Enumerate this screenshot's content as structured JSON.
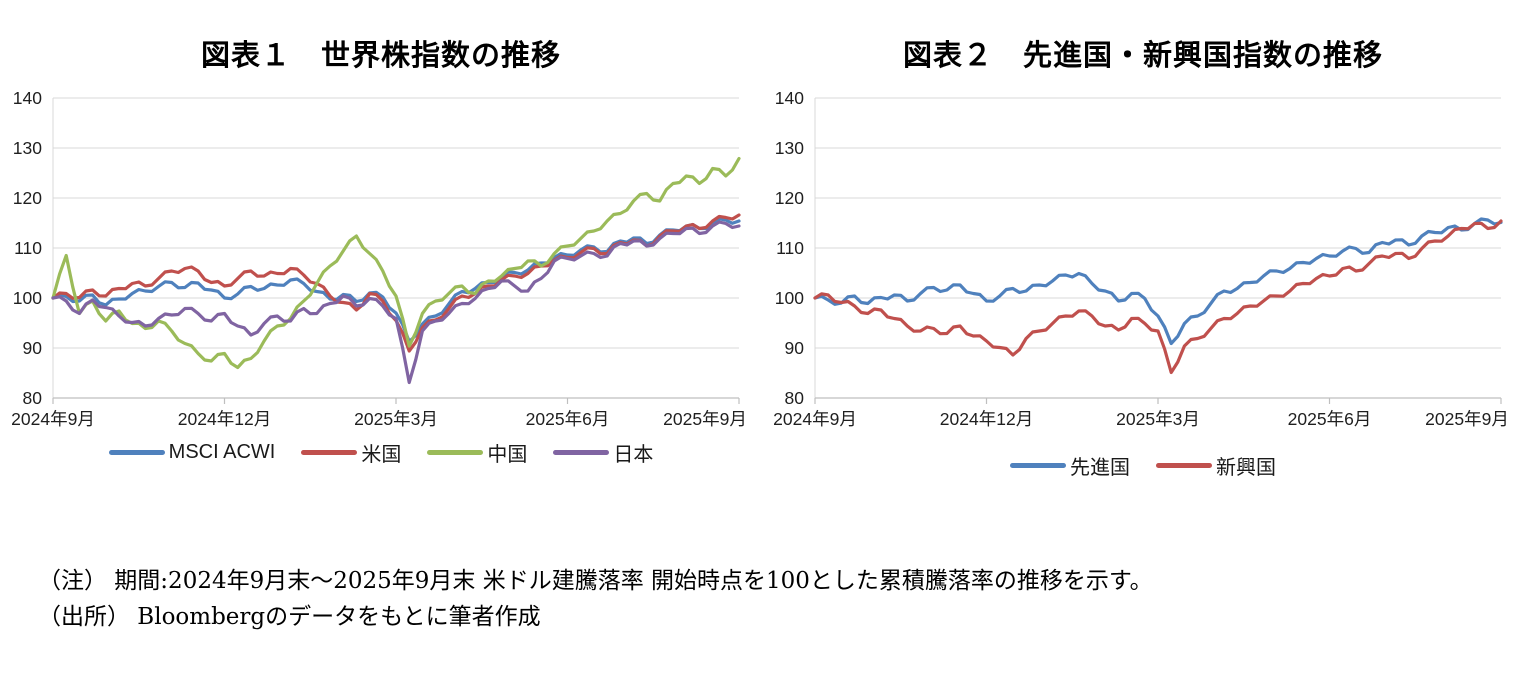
{
  "figure1": {
    "title": "図表１　世界株指数の推移",
    "legend": [
      {
        "label": "MSCI ACWI",
        "color": "#4F81BD"
      },
      {
        "label": "米国",
        "color": "#C0504D"
      },
      {
        "label": "中国",
        "color": "#9BBB59"
      },
      {
        "label": "日本",
        "color": "#8064A2"
      }
    ]
  },
  "figure2": {
    "title": "図表２　先進国・新興国指数の推移",
    "legend": [
      {
        "label": "先進国",
        "color": "#4F81BD"
      },
      {
        "label": "新興国",
        "color": "#C0504D"
      }
    ]
  },
  "notes": {
    "line1": "（注） 期間:2024年9月末～2025年9月末 米ドル建騰落率 開始時点を100とした累積騰落率の推移を示す。",
    "line2": "（出所） Bloombergのデータをもとに筆者作成"
  },
  "chart_data": [
    {
      "type": "line",
      "title": "図表１　世界株指数の推移",
      "x_tick_labels": [
        "2024年9月",
        "2024年12月",
        "2025年3月",
        "2025年6月",
        "2025年9月"
      ],
      "x_description": "weekly observations from 2024-09-30 to 2025-09-30, index start = 100",
      "ylim": [
        80,
        140
      ],
      "y_ticks": [
        80,
        90,
        100,
        110,
        120,
        130,
        140
      ],
      "grid": "horizontal",
      "legend_position": "bottom",
      "series": [
        {
          "name": "MSCI ACWI",
          "color": "#4F81BD",
          "values": [
            100,
            100.3,
            99.4,
            100.6,
            98.6,
            99.8,
            100.9,
            101.4,
            102.3,
            103.1,
            102.1,
            103,
            101.6,
            100,
            100.8,
            102.3,
            101.9,
            102.6,
            103.6,
            102.9,
            101.3,
            99.8,
            100.7,
            99.3,
            101,
            100.2,
            97,
            91.3,
            94.8,
            96.4,
            98.8,
            101.3,
            101.9,
            103.1,
            104.2,
            105.1,
            105.6,
            107,
            108.1,
            108.6,
            109.6,
            110.2,
            109.3,
            111.4,
            112,
            110.9,
            112.6,
            113.6,
            114.4,
            113.9,
            115,
            115.6,
            115.4
          ]
        },
        {
          "name": "米国",
          "color": "#C0504D",
          "values": [
            100,
            100.9,
            100.1,
            101.6,
            100.4,
            101.9,
            102.9,
            102.4,
            103.9,
            105.4,
            105.9,
            105.4,
            103.1,
            102.4,
            103.9,
            105.4,
            104.4,
            104.9,
            105.9,
            104.6,
            102.9,
            100.4,
            99.1,
            97.6,
            100.9,
            99.4,
            95.5,
            89.4,
            94.1,
            95.6,
            97.9,
            100.4,
            100.9,
            102.4,
            103.6,
            104.4,
            104.9,
            106.4,
            107.6,
            108.1,
            109.1,
            109.9,
            108.9,
            111.1,
            111.6,
            110.4,
            112.4,
            113.4,
            114.4,
            113.9,
            115.4,
            116.1,
            116.6
          ]
        },
        {
          "name": "中国",
          "color": "#9BBB59",
          "values": [
            100,
            108.5,
            96.9,
            99.4,
            95.4,
            97.4,
            94.9,
            93.9,
            95.4,
            93.4,
            90.9,
            88.9,
            87.4,
            88.9,
            86.1,
            87.9,
            91.4,
            94.4,
            95.9,
            99.4,
            102.9,
            106.4,
            109.4,
            112.4,
            108.9,
            105.4,
            100.4,
            90.4,
            96.9,
            99.4,
            100.9,
            102.4,
            100.9,
            103.4,
            104.4,
            105.9,
            107.4,
            106.4,
            108.9,
            110.4,
            111.9,
            113.4,
            115.4,
            116.9,
            119.4,
            120.9,
            119.4,
            122.9,
            124.4,
            122.9,
            125.9,
            124.4,
            127.9
          ]
        },
        {
          "name": "日本",
          "color": "#8064A2",
          "values": [
            100,
            99.4,
            96.9,
            99.6,
            98.1,
            96.4,
            95.1,
            94.4,
            95.9,
            96.6,
            97.9,
            96.9,
            95.4,
            96.9,
            94.4,
            92.6,
            94.9,
            96.4,
            95.4,
            97.9,
            96.9,
            98.9,
            100.4,
            98.4,
            99.9,
            98.4,
            95.9,
            83.1,
            93.4,
            95.4,
            96.9,
            98.9,
            99.9,
            101.9,
            103.4,
            102.4,
            101.4,
            103.9,
            107.4,
            107.9,
            108.4,
            108.9,
            108.4,
            110.9,
            111.4,
            110.4,
            111.9,
            112.9,
            113.9,
            112.9,
            114.4,
            114.9,
            114.4
          ]
        }
      ]
    },
    {
      "type": "line",
      "title": "図表２　先進国・新興国指数の推移",
      "x_tick_labels": [
        "2024年9月",
        "2024年12月",
        "2025年3月",
        "2025年6月",
        "2025年9月"
      ],
      "x_description": "weekly observations from 2024-09-30 to 2025-09-30, index start = 100",
      "ylim": [
        80,
        140
      ],
      "y_ticks": [
        80,
        90,
        100,
        110,
        120,
        130,
        140
      ],
      "grid": "horizontal",
      "legend_position": "bottom",
      "series": [
        {
          "name": "先進国",
          "color": "#4F81BD",
          "values": [
            100,
            99.6,
            99,
            100.4,
            98.9,
            100.1,
            100.6,
            99.4,
            100.9,
            102.1,
            101.6,
            102.6,
            100.9,
            99.4,
            100.4,
            101.9,
            101.4,
            102.6,
            103.4,
            104.6,
            104.9,
            102.9,
            101.4,
            99.4,
            100.9,
            99.9,
            96.4,
            90.9,
            94.9,
            96.4,
            98.9,
            101.4,
            101.9,
            103.1,
            104.4,
            105.4,
            105.9,
            107.1,
            107.9,
            108.4,
            109.4,
            109.9,
            109.1,
            111.1,
            111.6,
            110.6,
            112.4,
            113.1,
            114.1,
            113.6,
            114.9,
            115.6,
            115.1
          ]
        },
        {
          "name": "新興国",
          "color": "#C0504D",
          "values": [
            100,
            100.6,
            99.1,
            98.4,
            96.9,
            97.6,
            95.9,
            94.4,
            93.4,
            93.9,
            92.9,
            94.4,
            92.4,
            91.4,
            90.1,
            88.6,
            91.9,
            93.4,
            94.9,
            96.4,
            97.4,
            96.4,
            94.4,
            93.6,
            95.9,
            94.9,
            93.4,
            85.1,
            90.4,
            91.9,
            93.9,
            95.9,
            96.9,
            98.4,
            99.4,
            100.4,
            101.4,
            102.9,
            103.9,
            104.4,
            105.9,
            105.4,
            106.9,
            108.4,
            108.9,
            107.9,
            109.9,
            111.4,
            112.4,
            113.9,
            114.9,
            113.9,
            115.4
          ]
        }
      ]
    }
  ]
}
